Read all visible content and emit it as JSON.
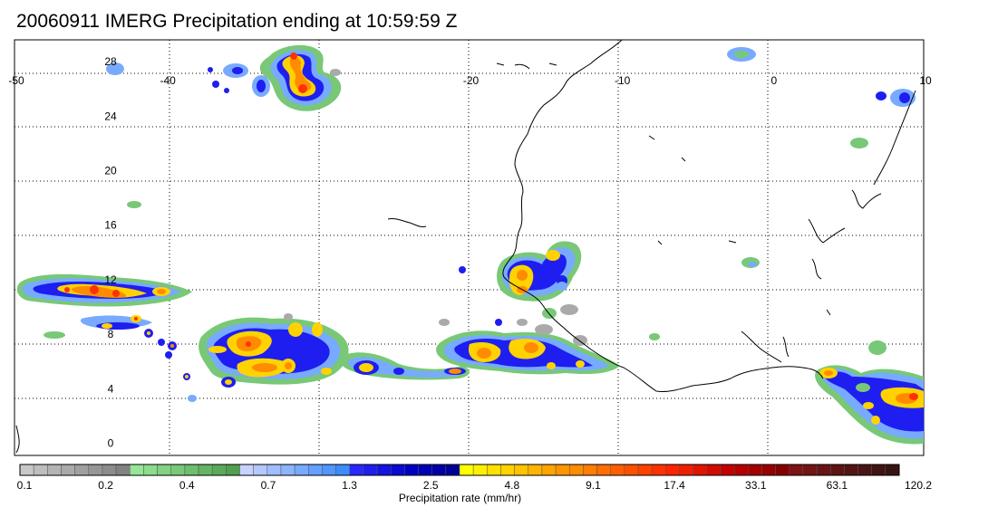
{
  "title": "20060911 IMERG Precipitation ending at 10:59:59 Z",
  "map": {
    "lon_range": [
      -50,
      10
    ],
    "lat_range": [
      -0.5,
      30
    ],
    "lon_ticks": [
      "-50",
      "-40",
      "-20",
      "-10",
      "0",
      "10"
    ],
    "lat_ticks": [
      "28",
      "24",
      "20",
      "16",
      "12",
      "8",
      "4",
      "0"
    ],
    "grid": "dotted",
    "coastline_color": "#000000"
  },
  "colorbar": {
    "title": "Precipitation rate (mm/hr)",
    "tick_labels": [
      "0.1",
      "0.2",
      "0.4",
      "0.7",
      "1.3",
      "2.5",
      "4.8",
      "9.1",
      "17.4",
      "33.1",
      "63.1",
      "120.2"
    ],
    "colors": [
      "#c8c8c8",
      "#bebebe",
      "#b4b4b4",
      "#aaaaaa",
      "#a0a0a0",
      "#969696",
      "#8c8c8c",
      "#828282",
      "#96e696",
      "#8cdc8c",
      "#82d282",
      "#78c878",
      "#6ebe6e",
      "#64b464",
      "#5aaa5a",
      "#50a050",
      "#c8d2ff",
      "#b4c8ff",
      "#a0beff",
      "#8cb4ff",
      "#78aaff",
      "#64a0ff",
      "#5096ff",
      "#3c8cff",
      "#2828ff",
      "#1e1ef0",
      "#1414e1",
      "#0a0ad2",
      "#0000c3",
      "#0000b4",
      "#0000a5",
      "#000096",
      "#ffff00",
      "#fff000",
      "#ffe100",
      "#ffd200",
      "#ffc300",
      "#ffb400",
      "#ffa500",
      "#ff9600",
      "#ff8c00",
      "#ff7d00",
      "#ff6e00",
      "#ff5f00",
      "#ff5000",
      "#ff4100",
      "#ff3200",
      "#ff2300",
      "#f01e00",
      "#e11400",
      "#d20a00",
      "#c30000",
      "#b40000",
      "#a50000",
      "#960000",
      "#870000",
      "#7d1414",
      "#731414",
      "#691414",
      "#5f1414",
      "#551414",
      "#4b1414",
      "#411414",
      "#371414"
    ]
  },
  "precip_colors": {
    "light": "#78c878",
    "gray": "#aaaaaa",
    "cyan": "#78aaff",
    "blue": "#1e1ef0",
    "yellow": "#ffd200",
    "orange": "#ff8c00",
    "red": "#ff3200"
  }
}
